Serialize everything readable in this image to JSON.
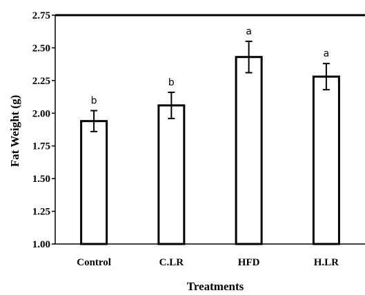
{
  "chart_data": {
    "type": "bar",
    "title": "",
    "xlabel": "Treatments",
    "ylabel": "Fat Weight (g)",
    "ylim": [
      1.0,
      2.75
    ],
    "yticks": [
      "1.00",
      "1.25",
      "1.50",
      "1.75",
      "2.00",
      "2.25",
      "2.50",
      "2.75"
    ],
    "categories": [
      "Control",
      "C.LR",
      "HFD",
      "H.LR"
    ],
    "values": [
      1.94,
      2.06,
      2.43,
      2.28
    ],
    "errors": [
      0.08,
      0.1,
      0.12,
      0.1
    ],
    "annotations": [
      "b",
      "b",
      "a",
      "a"
    ],
    "grid": false,
    "bar_fill": "#ffffff",
    "bar_stroke": "#000000"
  }
}
